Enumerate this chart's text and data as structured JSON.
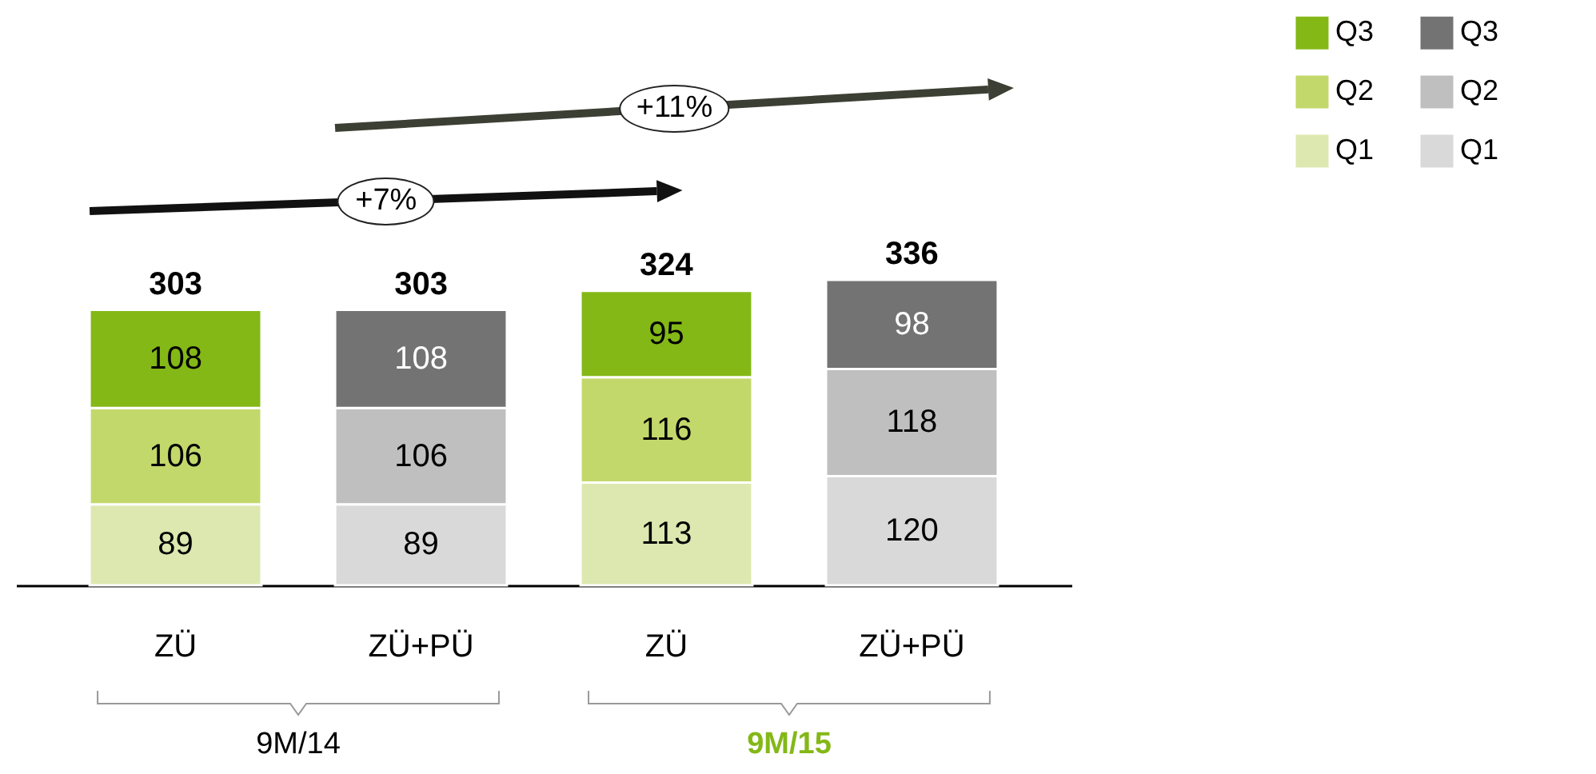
{
  "chart_data": {
    "type": "bar",
    "stacked": true,
    "data_labels": true,
    "legend": "top right",
    "categories": [
      "ZÜ",
      "ZÜ+PÜ",
      "ZÜ",
      "ZÜ+PÜ"
    ],
    "series": [
      {
        "name": "Q1",
        "color": "#dde8b0",
        "values": [
          89,
          null,
          113,
          null
        ]
      },
      {
        "name": "Q2",
        "color": "#c3d86b",
        "values": [
          106,
          null,
          116,
          null
        ]
      },
      {
        "name": "Q3",
        "color": "#84b817",
        "values": [
          108,
          null,
          95,
          null
        ]
      },
      {
        "name": "Q1",
        "color": "#d9d9d9",
        "values": [
          null,
          89,
          null,
          120
        ]
      },
      {
        "name": "Q2",
        "color": "#bfbfbf",
        "values": [
          null,
          106,
          null,
          118
        ]
      },
      {
        "name": "Q3",
        "color": "#737373",
        "values": [
          null,
          108,
          null,
          98
        ]
      }
    ],
    "totals": [
      "303",
      "303",
      "324",
      "336"
    ],
    "annotations": [
      "+11%",
      "+7%",
      "9M/14",
      "9M/15"
    ]
  }
}
